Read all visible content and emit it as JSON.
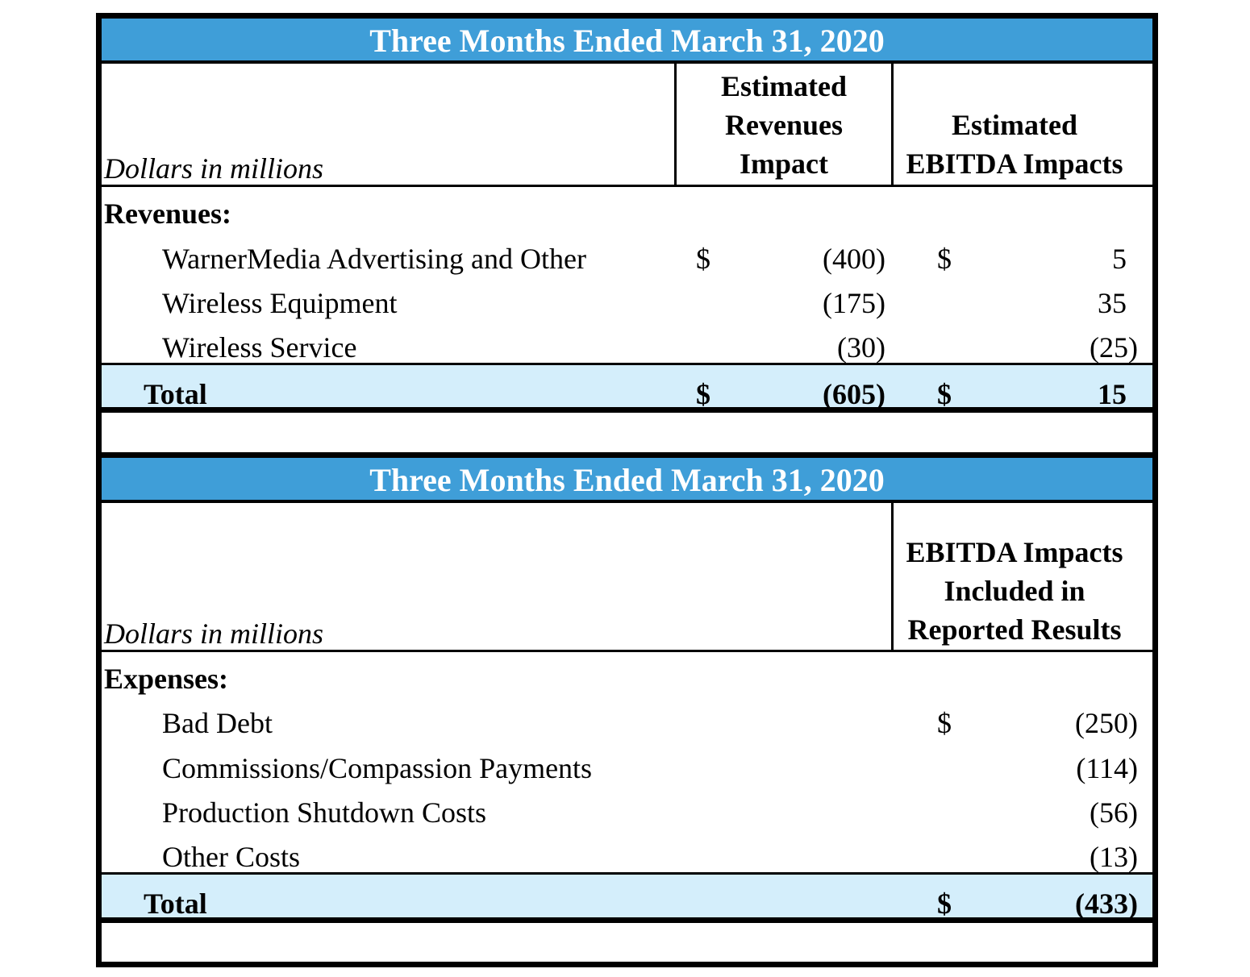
{
  "table1": {
    "title": "Three Months Ended March 31, 2020",
    "units_label": "Dollars in millions",
    "col1_header": [
      "Estimated",
      "Revenues",
      "Impact"
    ],
    "col2_header": [
      "Estimated",
      "EBITDA Impacts"
    ],
    "section_label": "Revenues:",
    "rows": [
      {
        "label": "WarnerMedia Advertising and Other",
        "cur1": "$",
        "val1": "(400)",
        "cur2": "$",
        "val2": "5"
      },
      {
        "label": "Wireless Equipment",
        "cur1": "",
        "val1": "(175)",
        "cur2": "",
        "val2": "35"
      },
      {
        "label": "Wireless Service",
        "cur1": "",
        "val1": "(30)",
        "cur2": "",
        "val2": "(25)"
      }
    ],
    "total": {
      "label": "Total",
      "cur1": "$",
      "val1": "(605)",
      "cur2": "$",
      "val2": "15"
    }
  },
  "table2": {
    "title": "Three Months Ended March 31, 2020",
    "units_label": "Dollars in millions",
    "col_header": [
      "EBITDA Impacts",
      "Included in",
      "Reported Results"
    ],
    "section_label": "Expenses:",
    "rows": [
      {
        "label": "Bad Debt",
        "cur": "$",
        "val": "(250)"
      },
      {
        "label": "Commissions/Compassion Payments",
        "cur": "",
        "val": "(114)"
      },
      {
        "label": "Production Shutdown Costs",
        "cur": "",
        "val": "(56)"
      },
      {
        "label": "Other Costs",
        "cur": "",
        "val": "(13)"
      }
    ],
    "total": {
      "label": "Total",
      "cur": "$",
      "val": "(433)"
    }
  }
}
